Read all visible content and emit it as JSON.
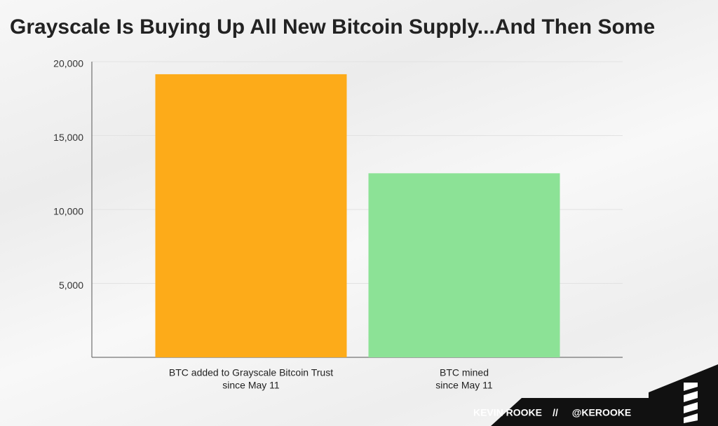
{
  "chart_data": {
    "type": "bar",
    "title": "Grayscale Is Buying Up All New Bitcoin Supply...And Then Some",
    "categories": [
      [
        "BTC added to Grayscale Bitcoin Trust",
        "since May 11"
      ],
      [
        "BTC mined",
        "since May 11"
      ]
    ],
    "values": [
      19150,
      12450
    ],
    "colors": [
      "#fdab19",
      "#8ce296"
    ],
    "ylim": [
      0,
      20000
    ],
    "yticks": [
      {
        "value": 5000,
        "label": "5,000"
      },
      {
        "value": 10000,
        "label": "10,000"
      },
      {
        "value": 15000,
        "label": "15,000"
      },
      {
        "value": 20000,
        "label": "20,000"
      }
    ],
    "grid": true
  },
  "footer": {
    "author": "KEVIN ROOKE",
    "separator": "//",
    "handle": "@KEROOKE"
  }
}
